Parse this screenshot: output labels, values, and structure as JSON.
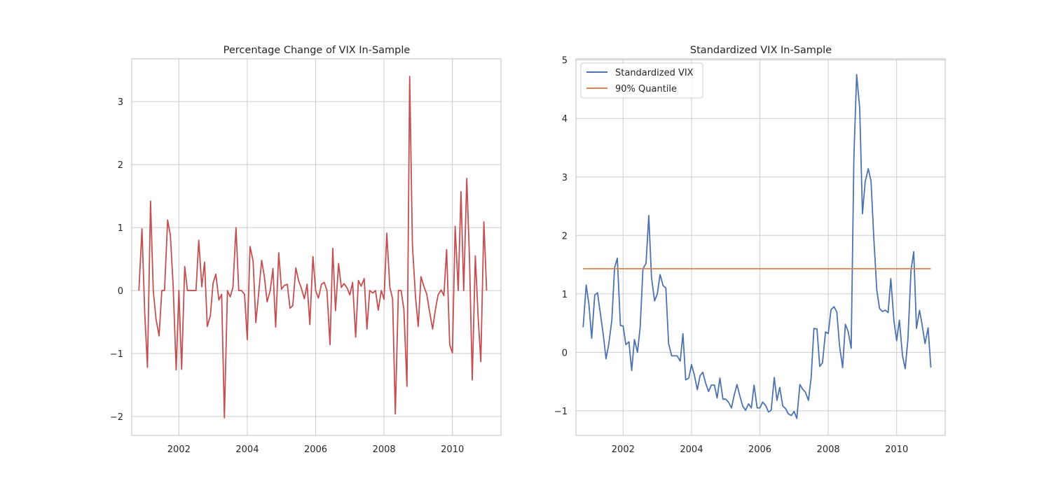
{
  "chart_data": [
    {
      "type": "line",
      "title": "Percentage Change of VIX In-Sample",
      "xlabel": "",
      "ylabel": "",
      "grid": true,
      "xlim": [
        2000.62,
        2011.42
      ],
      "ylim": [
        -2.3,
        3.68
      ],
      "x_ticks": [
        2002,
        2004,
        2006,
        2008,
        2010
      ],
      "x_tick_labels": [
        "2002",
        "2004",
        "2006",
        "2008",
        "2010"
      ],
      "y_ticks": [
        -2,
        -1,
        0,
        1,
        2,
        3
      ],
      "y_tick_labels": [
        "−2",
        "−1",
        "0",
        "1",
        "2",
        "3"
      ],
      "series": [
        {
          "color": "#c44e52",
          "x": [
            2000.83,
            2000.92,
            2001.0,
            2001.08,
            2001.17,
            2001.25,
            2001.33,
            2001.42,
            2001.5,
            2001.58,
            2001.67,
            2001.75,
            2001.83,
            2001.92,
            2002.0,
            2002.08,
            2002.17,
            2002.25,
            2002.33,
            2002.42,
            2002.5,
            2002.58,
            2002.67,
            2002.75,
            2002.83,
            2002.92,
            2003.0,
            2003.08,
            2003.17,
            2003.25,
            2003.33,
            2003.42,
            2003.5,
            2003.58,
            2003.67,
            2003.75,
            2003.83,
            2003.92,
            2004.0,
            2004.08,
            2004.17,
            2004.25,
            2004.33,
            2004.42,
            2004.5,
            2004.58,
            2004.67,
            2004.75,
            2004.83,
            2004.92,
            2005.0,
            2005.08,
            2005.17,
            2005.25,
            2005.33,
            2005.42,
            2005.5,
            2005.58,
            2005.67,
            2005.75,
            2005.83,
            2005.92,
            2006.0,
            2006.08,
            2006.17,
            2006.25,
            2006.33,
            2006.42,
            2006.5,
            2006.58,
            2006.67,
            2006.75,
            2006.83,
            2006.92,
            2007.0,
            2007.08,
            2007.17,
            2007.25,
            2007.33,
            2007.42,
            2007.5,
            2007.58,
            2007.67,
            2007.75,
            2007.83,
            2007.92,
            2008.0,
            2008.08,
            2008.17,
            2008.25,
            2008.33,
            2008.42,
            2008.5,
            2008.58,
            2008.67,
            2008.75,
            2008.83,
            2008.92,
            2009.0,
            2009.08,
            2009.17,
            2009.25,
            2009.33,
            2009.42,
            2009.5,
            2009.58,
            2009.67,
            2009.75,
            2009.83,
            2009.92,
            2010.0,
            2010.08,
            2010.17,
            2010.25,
            2010.33,
            2010.42,
            2010.5,
            2010.58,
            2010.67,
            2010.75,
            2010.83,
            2010.92,
            2011.0
          ],
          "values": [
            0.0,
            0.98,
            -0.35,
            -1.22,
            1.42,
            0.0,
            -0.45,
            -0.72,
            0.0,
            0.0,
            1.12,
            0.88,
            0.1,
            -1.26,
            0.0,
            -1.25,
            0.38,
            0.0,
            0.0,
            0.0,
            0.0,
            0.8,
            0.06,
            0.45,
            -0.57,
            -0.4,
            0.12,
            0.26,
            -0.15,
            -0.06,
            -2.02,
            0.0,
            -0.1,
            0.05,
            1.0,
            0.0,
            0.0,
            -0.06,
            -0.78,
            0.7,
            0.47,
            -0.51,
            -0.06,
            0.48,
            0.22,
            -0.18,
            0.0,
            0.35,
            -0.58,
            0.6,
            0.02,
            0.08,
            0.1,
            -0.28,
            -0.24,
            0.36,
            0.16,
            0.04,
            -0.13,
            0.1,
            -0.54,
            0.54,
            0.0,
            -0.12,
            0.1,
            0.13,
            0.0,
            -0.86,
            0.67,
            -0.32,
            0.43,
            0.05,
            0.11,
            0.04,
            -0.07,
            0.13,
            -0.74,
            0.16,
            0.07,
            0.19,
            -0.61,
            0.0,
            -0.04,
            0.0,
            -0.31,
            0.0,
            -0.14,
            0.91,
            0.05,
            -0.13,
            -1.96,
            0.0,
            0.0,
            -0.3,
            -1.52,
            3.4,
            0.72,
            -0.1,
            -0.57,
            0.22,
            0.06,
            -0.06,
            -0.33,
            -0.61,
            -0.31,
            -0.07,
            0.01,
            -0.08,
            0.65,
            -0.86,
            -0.99,
            1.02,
            0.0,
            1.57,
            0.0,
            1.78,
            0.5,
            -1.42,
            0.55,
            -0.4,
            -1.13,
            1.09,
            0.0
          ]
        }
      ]
    },
    {
      "type": "line",
      "title": "Standardized VIX In-Sample",
      "xlabel": "",
      "ylabel": "",
      "grid": true,
      "legend_position": "top-left",
      "xlim": [
        2000.62,
        2011.42
      ],
      "ylim": [
        -1.42,
        5.02
      ],
      "x_ticks": [
        2002,
        2004,
        2006,
        2008,
        2010
      ],
      "x_tick_labels": [
        "2002",
        "2004",
        "2006",
        "2008",
        "2010"
      ],
      "y_ticks": [
        -1,
        0,
        1,
        2,
        3,
        4,
        5
      ],
      "y_tick_labels": [
        "−1",
        "0",
        "1",
        "2",
        "3",
        "4",
        "5"
      ],
      "series": [
        {
          "name": "Standardized VIX",
          "color": "#4c72b0",
          "x": [
            2000.83,
            2000.92,
            2001.0,
            2001.08,
            2001.17,
            2001.25,
            2001.33,
            2001.42,
            2001.5,
            2001.58,
            2001.67,
            2001.75,
            2001.83,
            2001.92,
            2002.0,
            2002.08,
            2002.17,
            2002.25,
            2002.33,
            2002.42,
            2002.5,
            2002.58,
            2002.67,
            2002.75,
            2002.83,
            2002.92,
            2003.0,
            2003.08,
            2003.17,
            2003.25,
            2003.33,
            2003.42,
            2003.5,
            2003.58,
            2003.67,
            2003.75,
            2003.83,
            2003.92,
            2004.0,
            2004.08,
            2004.17,
            2004.25,
            2004.33,
            2004.42,
            2004.5,
            2004.58,
            2004.67,
            2004.75,
            2004.83,
            2004.92,
            2005.0,
            2005.08,
            2005.17,
            2005.25,
            2005.33,
            2005.42,
            2005.5,
            2005.58,
            2005.67,
            2005.75,
            2005.83,
            2005.92,
            2006.0,
            2006.08,
            2006.17,
            2006.25,
            2006.33,
            2006.42,
            2006.5,
            2006.58,
            2006.67,
            2006.75,
            2006.83,
            2006.92,
            2007.0,
            2007.08,
            2007.17,
            2007.25,
            2007.33,
            2007.42,
            2007.5,
            2007.58,
            2007.67,
            2007.75,
            2007.83,
            2007.92,
            2008.0,
            2008.08,
            2008.17,
            2008.25,
            2008.33,
            2008.42,
            2008.5,
            2008.58,
            2008.67,
            2008.75,
            2008.83,
            2008.92,
            2009.0,
            2009.08,
            2009.17,
            2009.25,
            2009.33,
            2009.42,
            2009.5,
            2009.58,
            2009.67,
            2009.75,
            2009.83,
            2009.92,
            2010.0,
            2010.08,
            2010.17,
            2010.25,
            2010.33,
            2010.42,
            2010.5,
            2010.58,
            2010.67,
            2010.75,
            2010.83,
            2010.92,
            2011.0
          ],
          "values": [
            0.43,
            1.15,
            0.82,
            0.24,
            0.98,
            1.02,
            0.68,
            0.3,
            -0.11,
            0.14,
            0.55,
            1.45,
            1.61,
            0.46,
            0.45,
            0.13,
            0.18,
            -0.31,
            0.22,
            0.0,
            0.44,
            1.43,
            1.52,
            2.34,
            1.28,
            0.88,
            1.0,
            1.33,
            1.14,
            1.1,
            0.15,
            -0.06,
            -0.06,
            -0.06,
            -0.15,
            0.32,
            -0.47,
            -0.44,
            -0.21,
            -0.38,
            -0.64,
            -0.4,
            -0.34,
            -0.54,
            -0.67,
            -0.56,
            -0.56,
            -0.78,
            -0.44,
            -0.8,
            -0.8,
            -0.85,
            -0.95,
            -0.73,
            -0.55,
            -0.76,
            -0.92,
            -0.99,
            -0.88,
            -0.95,
            -0.56,
            -0.95,
            -0.95,
            -0.85,
            -0.91,
            -1.02,
            -0.99,
            -0.43,
            -0.82,
            -0.6,
            -0.92,
            -0.96,
            -1.05,
            -1.08,
            -1.01,
            -1.13,
            -0.55,
            -0.63,
            -0.68,
            -0.82,
            -0.43,
            0.41,
            0.4,
            -0.24,
            -0.18,
            0.35,
            0.32,
            0.73,
            0.78,
            0.69,
            0.11,
            -0.26,
            0.48,
            0.36,
            0.07,
            3.35,
            4.75,
            4.17,
            2.37,
            2.92,
            3.14,
            2.93,
            1.98,
            1.06,
            0.75,
            0.7,
            0.72,
            0.68,
            1.26,
            0.54,
            0.2,
            0.55,
            -0.05,
            -0.28,
            0.23,
            1.4,
            1.72,
            0.41,
            0.72,
            0.45,
            0.15,
            0.42,
            -0.26
          ]
        },
        {
          "name": "90% Quantile",
          "color": "#dd8452",
          "x": [
            2000.83,
            2011.0
          ],
          "values": [
            1.43,
            1.43
          ]
        }
      ]
    }
  ]
}
